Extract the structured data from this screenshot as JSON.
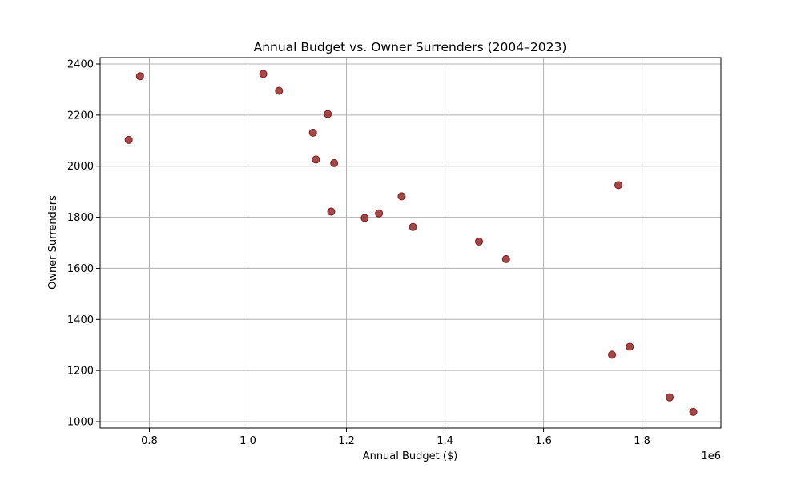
{
  "chart_data": {
    "type": "scatter",
    "title": "Annual Budget vs. Owner Surrenders (2004–2023)",
    "xlabel": "Annual Budget ($)",
    "ylabel": "Owner Surrenders",
    "x_offset_label": "1e6",
    "x_scale": 1000000,
    "xlim": [
      700000,
      1960000
    ],
    "ylim": [
      975,
      2425
    ],
    "xticks": [
      800000,
      1000000,
      1200000,
      1400000,
      1600000,
      1800000
    ],
    "xtick_labels": [
      "0.8",
      "1.0",
      "1.2",
      "1.4",
      "1.6",
      "1.8"
    ],
    "yticks": [
      1000,
      1200,
      1400,
      1600,
      1800,
      2000,
      2200,
      2400
    ],
    "ytick_labels": [
      "1000",
      "1200",
      "1400",
      "1600",
      "1800",
      "2000",
      "2200",
      "2400"
    ],
    "grid": true,
    "marker_color": "#8b1a1a",
    "marker_alpha": 0.8,
    "points": [
      {
        "x": 758000,
        "y": 2103
      },
      {
        "x": 781000,
        "y": 2352
      },
      {
        "x": 1031000,
        "y": 2361
      },
      {
        "x": 1063000,
        "y": 2295
      },
      {
        "x": 1132000,
        "y": 2131
      },
      {
        "x": 1138000,
        "y": 2026
      },
      {
        "x": 1162000,
        "y": 2204
      },
      {
        "x": 1169000,
        "y": 1822
      },
      {
        "x": 1175000,
        "y": 2012
      },
      {
        "x": 1237000,
        "y": 1797
      },
      {
        "x": 1266000,
        "y": 1815
      },
      {
        "x": 1312000,
        "y": 1882
      },
      {
        "x": 1335000,
        "y": 1762
      },
      {
        "x": 1469000,
        "y": 1705
      },
      {
        "x": 1524000,
        "y": 1636
      },
      {
        "x": 1739000,
        "y": 1262
      },
      {
        "x": 1752000,
        "y": 1926
      },
      {
        "x": 1775000,
        "y": 1293
      },
      {
        "x": 1856000,
        "y": 1095
      },
      {
        "x": 1904000,
        "y": 1038
      }
    ]
  }
}
